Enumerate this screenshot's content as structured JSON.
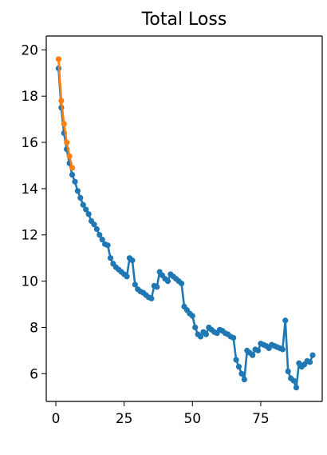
{
  "chart_data": {
    "type": "line",
    "title": "Total Loss",
    "xlabel": "",
    "ylabel": "",
    "xlim": [
      -3.5,
      97.5
    ],
    "ylim": [
      4.8,
      20.6
    ],
    "x_ticks": [
      0,
      25,
      50,
      75
    ],
    "y_ticks": [
      6,
      8,
      10,
      12,
      14,
      16,
      18,
      20
    ],
    "grid": false,
    "series": [
      {
        "name": "",
        "color": "#1f77b4",
        "marker": "circle",
        "points": [
          [
            1,
            19.2
          ],
          [
            2,
            17.5
          ],
          [
            3,
            16.4
          ],
          [
            4,
            15.7
          ],
          [
            5,
            15.1
          ],
          [
            6,
            14.6
          ],
          [
            7,
            14.3
          ],
          [
            8,
            13.9
          ],
          [
            9,
            13.6
          ],
          [
            10,
            13.3
          ],
          [
            11,
            13.1
          ],
          [
            12,
            12.9
          ],
          [
            13,
            12.6
          ],
          [
            14,
            12.45
          ],
          [
            15,
            12.25
          ],
          [
            16,
            12.0
          ],
          [
            17,
            11.8
          ],
          [
            18,
            11.6
          ],
          [
            19,
            11.55
          ],
          [
            20,
            11.0
          ],
          [
            21,
            10.75
          ],
          [
            22,
            10.6
          ],
          [
            23,
            10.5
          ],
          [
            24,
            10.4
          ],
          [
            25,
            10.3
          ],
          [
            26,
            10.2
          ],
          [
            27,
            11.0
          ],
          [
            28,
            10.9
          ],
          [
            29,
            9.85
          ],
          [
            30,
            9.65
          ],
          [
            31,
            9.55
          ],
          [
            32,
            9.5
          ],
          [
            33,
            9.4
          ],
          [
            34,
            9.3
          ],
          [
            35,
            9.25
          ],
          [
            36,
            9.8
          ],
          [
            37,
            9.75
          ],
          [
            38,
            10.4
          ],
          [
            39,
            10.25
          ],
          [
            40,
            10.1
          ],
          [
            41,
            10.0
          ],
          [
            42,
            10.3
          ],
          [
            43,
            10.2
          ],
          [
            44,
            10.1
          ],
          [
            45,
            10.0
          ],
          [
            46,
            9.9
          ],
          [
            47,
            8.9
          ],
          [
            48,
            8.75
          ],
          [
            49,
            8.6
          ],
          [
            50,
            8.5
          ],
          [
            51,
            8.0
          ],
          [
            52,
            7.7
          ],
          [
            53,
            7.6
          ],
          [
            54,
            7.8
          ],
          [
            55,
            7.7
          ],
          [
            56,
            8.0
          ],
          [
            57,
            7.9
          ],
          [
            58,
            7.8
          ],
          [
            59,
            7.75
          ],
          [
            60,
            7.9
          ],
          [
            61,
            7.85
          ],
          [
            62,
            7.75
          ],
          [
            63,
            7.7
          ],
          [
            64,
            7.6
          ],
          [
            65,
            7.55
          ],
          [
            66,
            6.6
          ],
          [
            67,
            6.3
          ],
          [
            68,
            6.0
          ],
          [
            69,
            5.75
          ],
          [
            70,
            7.0
          ],
          [
            71,
            6.9
          ],
          [
            72,
            6.8
          ],
          [
            73,
            7.05
          ],
          [
            74,
            7.0
          ],
          [
            75,
            7.3
          ],
          [
            76,
            7.25
          ],
          [
            77,
            7.2
          ],
          [
            78,
            7.1
          ],
          [
            79,
            7.25
          ],
          [
            80,
            7.2
          ],
          [
            81,
            7.15
          ],
          [
            82,
            7.1
          ],
          [
            83,
            7.05
          ],
          [
            84,
            8.3
          ],
          [
            85,
            6.1
          ],
          [
            86,
            5.8
          ],
          [
            87,
            5.7
          ],
          [
            88,
            5.4
          ],
          [
            89,
            6.45
          ],
          [
            90,
            6.3
          ],
          [
            91,
            6.4
          ],
          [
            92,
            6.55
          ],
          [
            93,
            6.5
          ],
          [
            94,
            6.8
          ]
        ]
      },
      {
        "name": "",
        "color": "#ff7f0e",
        "marker": "circle",
        "points": [
          [
            1,
            19.6
          ],
          [
            2,
            17.8
          ],
          [
            3,
            16.8
          ],
          [
            4,
            16.0
          ],
          [
            5,
            15.4
          ],
          [
            6,
            14.9
          ]
        ]
      }
    ]
  }
}
